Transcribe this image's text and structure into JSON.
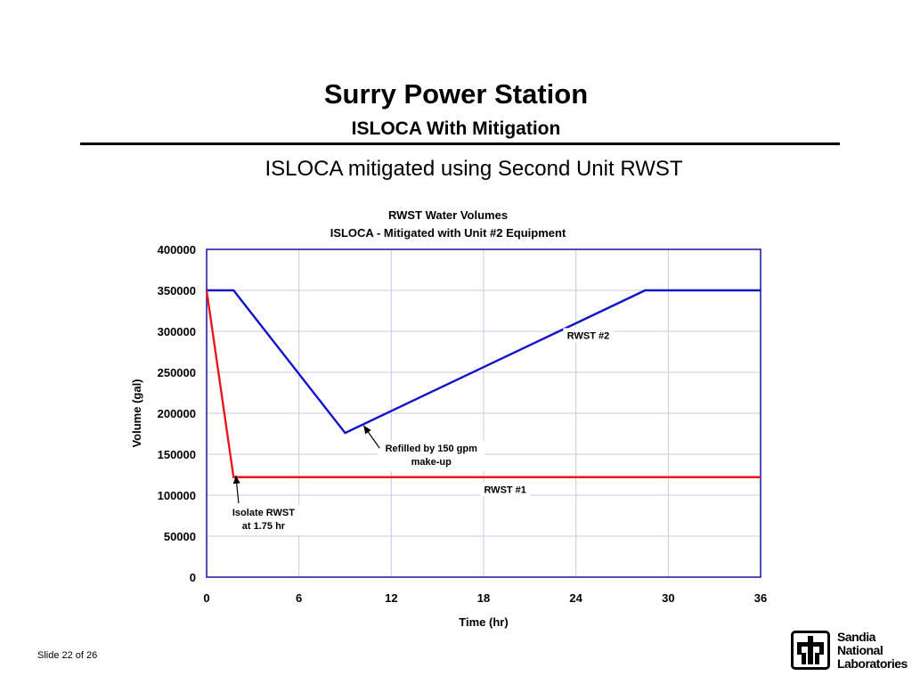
{
  "slide": {
    "title": "Surry Power Station",
    "subtitle": "ISLOCA With Mitigation",
    "heading": "ISLOCA mitigated using Second Unit RWST",
    "footer": "Slide 22 of 26",
    "logo": {
      "line1": "Sandia",
      "line2": "National",
      "line3": "Laboratories",
      "icon": "sandia-thunderbird-icon"
    }
  },
  "colors": {
    "rwst1": "#e8181e",
    "rwst2": "#1414c8",
    "grid": "#c8c8e6",
    "plot_border": "#1414a0"
  },
  "chart_data": {
    "type": "line",
    "title": "RWST Water Volumes",
    "subtitle": "ISLOCA - Mitigated with Unit #2 Equipment",
    "xlabel": "Time (hr)",
    "ylabel": "Volume (gal)",
    "xlim": [
      0,
      36
    ],
    "ylim": [
      0,
      400000
    ],
    "xticks": [
      0,
      6,
      12,
      18,
      24,
      30,
      36
    ],
    "yticks": [
      0,
      50000,
      100000,
      150000,
      200000,
      250000,
      300000,
      350000,
      400000
    ],
    "grid": true,
    "series": [
      {
        "name": "RWST #2",
        "color": "#1414c8",
        "x": [
          0,
          1.75,
          9,
          28.5,
          36
        ],
        "y": [
          350000,
          350000,
          176000,
          350000,
          350000
        ]
      },
      {
        "name": "RWST #1",
        "color": "#e8181e",
        "x": [
          0,
          1.75,
          36
        ],
        "y": [
          350000,
          122000,
          122000
        ]
      }
    ],
    "annotations": [
      {
        "text": [
          "Refilled by 150 gpm",
          "make-up"
        ],
        "arrow_to": [
          10.2,
          185000
        ],
        "label_at": [
          14.6,
          153000
        ]
      },
      {
        "text": [
          "Isolate RWST",
          "at 1.75 hr"
        ],
        "arrow_to": [
          1.9,
          124000
        ],
        "label_at": [
          3.7,
          75000
        ]
      }
    ],
    "series_labels": [
      {
        "text": "RWST #2",
        "at": [
          24.8,
          292000
        ]
      },
      {
        "text": "RWST #1",
        "at": [
          19.4,
          104000
        ]
      }
    ]
  }
}
